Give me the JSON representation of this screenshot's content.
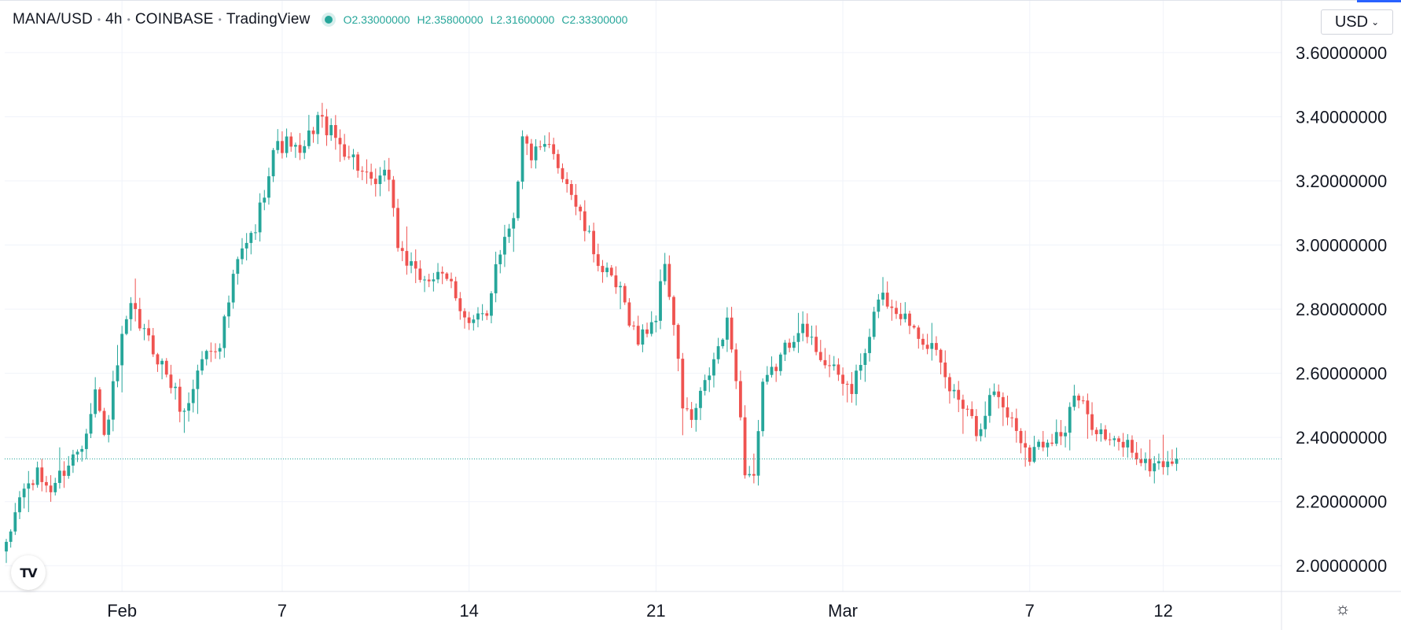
{
  "legend": {
    "symbol": "MANA/USD",
    "interval": "4h",
    "exchange": "COINBASE",
    "source": "TradingView",
    "open_label": "O",
    "open": "2.33000000",
    "high_label": "H",
    "high": "2.35800000",
    "low_label": "L",
    "low": "2.31600000",
    "close_label": "C",
    "close": "2.33300000"
  },
  "currency_button": {
    "label": "USD"
  },
  "logo": {
    "label": "TV"
  },
  "colors": {
    "up": "#26a69a",
    "down": "#ef5350",
    "grid": "#f0f3fa",
    "axis_border": "#e0e3eb",
    "price_line": "#26a69a",
    "text": "#131722",
    "accent": "#2962ff"
  },
  "chart_data": {
    "type": "candlestick",
    "title": "MANA/USD · 4h · COINBASE",
    "y_ticks": [
      "3.60000000",
      "3.40000000",
      "3.20000000",
      "3.00000000",
      "2.80000000",
      "2.60000000",
      "2.40000000",
      "2.20000000",
      "2.00000000"
    ],
    "y_tick_values": [
      3.6,
      3.4,
      3.2,
      3.0,
      2.8,
      2.6,
      2.4,
      2.2,
      2.0
    ],
    "ylim": [
      1.9,
      3.72
    ],
    "x_ticks": [
      {
        "label": "Feb",
        "index": 26
      },
      {
        "label": "7",
        "index": 62
      },
      {
        "label": "14",
        "index": 104
      },
      {
        "label": "21",
        "index": 146
      },
      {
        "label": "Mar",
        "index": 188
      },
      {
        "label": "7",
        "index": 230
      },
      {
        "label": "12",
        "index": 260
      }
    ],
    "current_price": 2.333,
    "grid": true,
    "candle_count": 264,
    "keypoints": [
      [
        0,
        2.05
      ],
      [
        3,
        2.22
      ],
      [
        7,
        2.28
      ],
      [
        10,
        2.24
      ],
      [
        14,
        2.32
      ],
      [
        17,
        2.38
      ],
      [
        20,
        2.55
      ],
      [
        22,
        2.4
      ],
      [
        26,
        2.7
      ],
      [
        28,
        2.8
      ],
      [
        32,
        2.7
      ],
      [
        36,
        2.6
      ],
      [
        40,
        2.47
      ],
      [
        44,
        2.65
      ],
      [
        48,
        2.7
      ],
      [
        52,
        2.95
      ],
      [
        56,
        3.05
      ],
      [
        60,
        3.3
      ],
      [
        64,
        3.32
      ],
      [
        66,
        3.27
      ],
      [
        70,
        3.4
      ],
      [
        74,
        3.33
      ],
      [
        78,
        3.27
      ],
      [
        82,
        3.18
      ],
      [
        86,
        3.22
      ],
      [
        88,
        3.0
      ],
      [
        92,
        2.9
      ],
      [
        96,
        2.9
      ],
      [
        100,
        2.88
      ],
      [
        104,
        2.75
      ],
      [
        108,
        2.78
      ],
      [
        110,
        2.95
      ],
      [
        114,
        3.1
      ],
      [
        116,
        3.33
      ],
      [
        118,
        3.28
      ],
      [
        122,
        3.3
      ],
      [
        126,
        3.2
      ],
      [
        130,
        3.05
      ],
      [
        134,
        2.92
      ],
      [
        138,
        2.85
      ],
      [
        142,
        2.7
      ],
      [
        146,
        2.78
      ],
      [
        148,
        2.95
      ],
      [
        150,
        2.75
      ],
      [
        152,
        2.5
      ],
      [
        154,
        2.45
      ],
      [
        158,
        2.6
      ],
      [
        162,
        2.75
      ],
      [
        164,
        2.6
      ],
      [
        166,
        2.3
      ],
      [
        168,
        2.28
      ],
      [
        170,
        2.55
      ],
      [
        174,
        2.65
      ],
      [
        178,
        2.75
      ],
      [
        182,
        2.68
      ],
      [
        186,
        2.6
      ],
      [
        190,
        2.55
      ],
      [
        194,
        2.7
      ],
      [
        196,
        2.85
      ],
      [
        200,
        2.8
      ],
      [
        204,
        2.75
      ],
      [
        208,
        2.68
      ],
      [
        212,
        2.55
      ],
      [
        216,
        2.5
      ],
      [
        218,
        2.42
      ],
      [
        222,
        2.55
      ],
      [
        226,
        2.45
      ],
      [
        230,
        2.35
      ],
      [
        234,
        2.4
      ],
      [
        238,
        2.42
      ],
      [
        240,
        2.53
      ],
      [
        244,
        2.45
      ],
      [
        248,
        2.38
      ],
      [
        252,
        2.38
      ],
      [
        256,
        2.31
      ],
      [
        263,
        2.333
      ]
    ]
  }
}
